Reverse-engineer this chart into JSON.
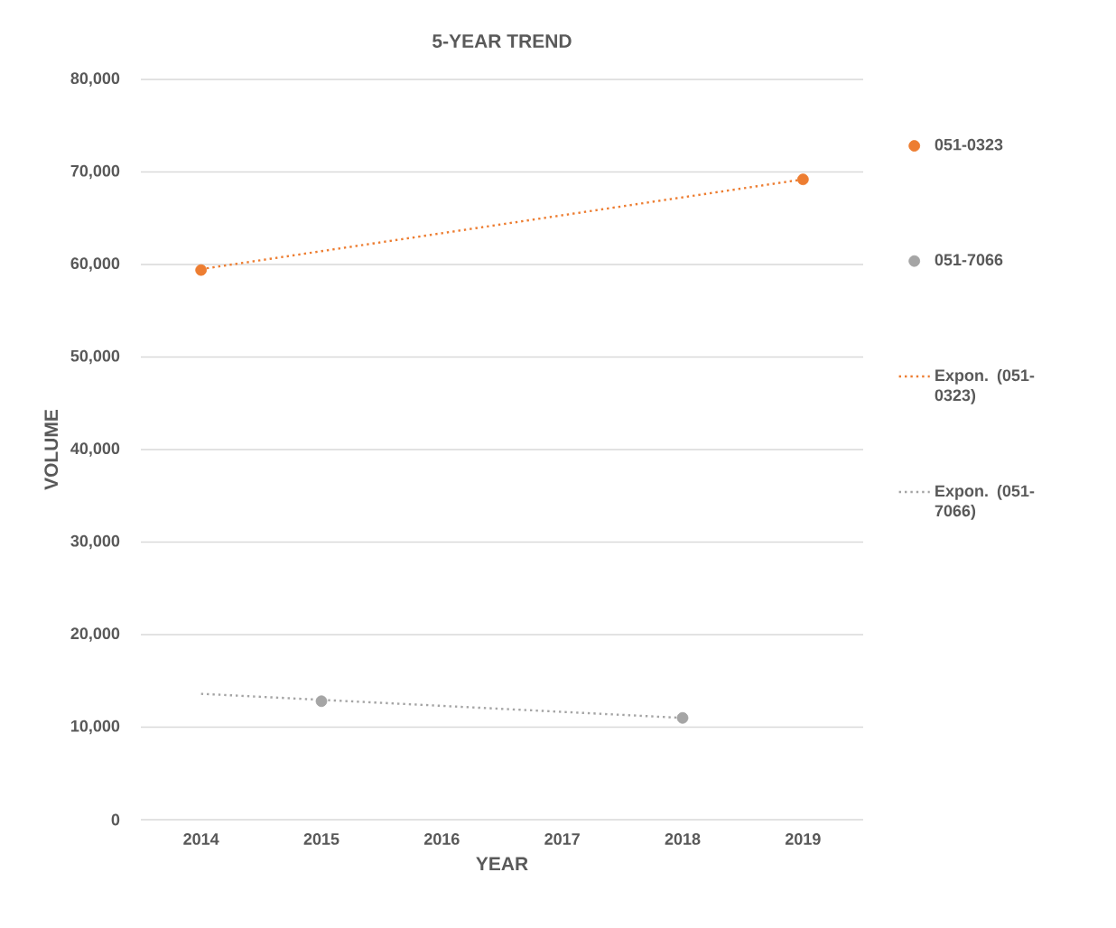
{
  "chart_data": {
    "type": "scatter",
    "title": "5-YEAR TREND",
    "xlabel": "YEAR",
    "ylabel": "VOLUME",
    "xlim": [
      2013.5,
      2019.5
    ],
    "xticks": [
      2014,
      2015,
      2016,
      2017,
      2018,
      2019
    ],
    "ylim": [
      0,
      80000
    ],
    "yticks": [
      0,
      {
        "value": 10000,
        "label": "10,000"
      },
      {
        "value": 20000,
        "label": "20,000"
      },
      {
        "value": 30000,
        "label": "30,000"
      },
      {
        "value": 40000,
        "label": "40,000"
      },
      {
        "value": 50000,
        "label": "50,000"
      },
      {
        "value": 60000,
        "label": "60,000"
      },
      {
        "value": 70000,
        "label": "70,000"
      },
      {
        "value": 80000,
        "label": "80,000"
      }
    ],
    "grid": "y",
    "legend": "right",
    "series": [
      {
        "name": "051-0323",
        "marker": "circle",
        "color": "#ed7d31",
        "x": [
          2014,
          2019
        ],
        "values": [
          59400,
          69200
        ]
      },
      {
        "name": "051-7066",
        "marker": "circle",
        "color": "#a5a5a5",
        "x": [
          2015,
          2018
        ],
        "values": [
          12800,
          11000
        ]
      },
      {
        "name": "Expon. (051-0323)",
        "type": "line",
        "marker": "none",
        "line_style": "dotted",
        "color": "#ed7d31",
        "x": [
          2014,
          2019
        ],
        "values": [
          59500,
          69200
        ]
      },
      {
        "name": "Expon. (051-7066)",
        "type": "line",
        "marker": "none",
        "line_style": "dotted",
        "color": "#a5a5a5",
        "x": [
          2014,
          2018
        ],
        "values": [
          13600,
          11000
        ]
      }
    ]
  }
}
